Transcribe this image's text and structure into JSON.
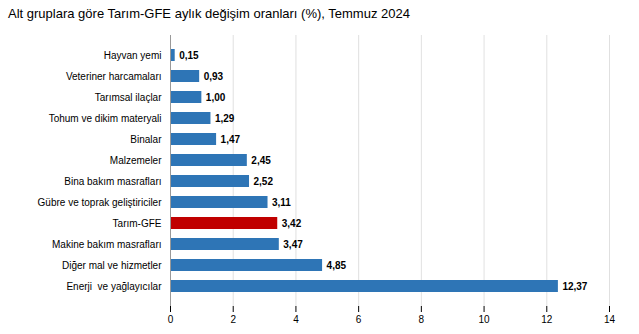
{
  "chart_data": {
    "type": "bar",
    "title": "Alt gruplara göre Tarım-GFE aylık değişim oranları (%), Temmuz 2024",
    "orientation": "horizontal",
    "categories": [
      "Enerji  ve yağlayıcılar",
      "Diğer mal ve hizmetler",
      "Makine bakım masrafları",
      "Tarım-GFE",
      "Gübre ve toprak geliştiriciler",
      "Bina bakım masrafları",
      "Malzemeler",
      "Binalar",
      "Tohum ve dikim materyali",
      "Tarımsal ilaçlar",
      "Veteriner harcamaları",
      "Hayvan yemi"
    ],
    "values": [
      12.37,
      4.85,
      3.47,
      3.42,
      3.11,
      2.52,
      2.45,
      1.47,
      1.29,
      1.0,
      0.93,
      0.15
    ],
    "value_labels": [
      "12,37",
      "4,85",
      "3,47",
      "3,42",
      "3,11",
      "2,52",
      "2,45",
      "1,47",
      "1,29",
      "1,00",
      "0,93",
      "0,15"
    ],
    "colors": [
      "#2E75B6",
      "#2E75B6",
      "#2E75B6",
      "#C00000",
      "#2E75B6",
      "#2E75B6",
      "#2E75B6",
      "#2E75B6",
      "#2E75B6",
      "#2E75B6",
      "#2E75B6",
      "#2E75B6"
    ],
    "xlim": [
      0,
      14
    ],
    "xticks": [
      0,
      2,
      4,
      6,
      8,
      10,
      12,
      14
    ],
    "grid": true,
    "data_labels": true
  }
}
